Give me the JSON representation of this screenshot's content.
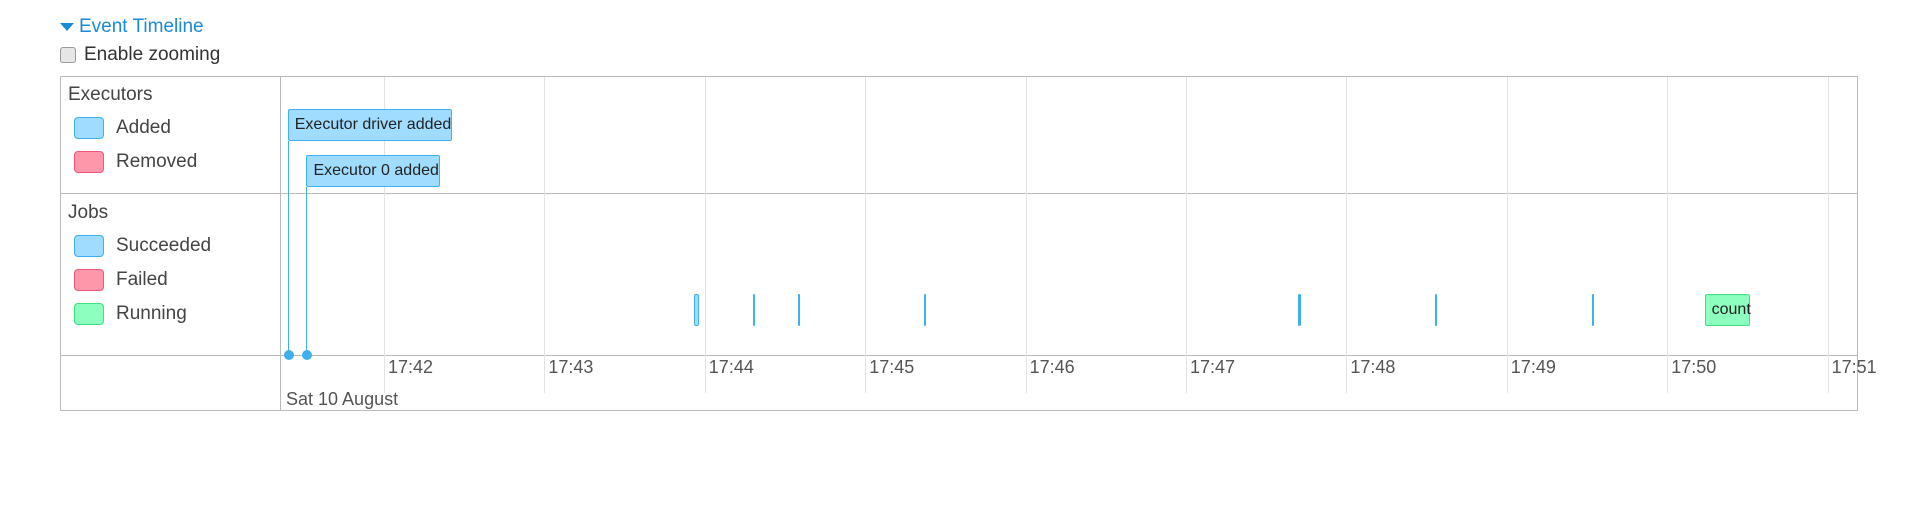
{
  "header": {
    "title": "Event Timeline",
    "expanded": true
  },
  "zoom_toggle": {
    "label": "Enable zooming",
    "checked": false
  },
  "colors": {
    "added": "#a0dcff",
    "removed": "#ff97ab",
    "succeeded": "#a0dcff",
    "failed": "#ff97ab",
    "running": "#8dffbf",
    "link": "#1a8ad6"
  },
  "groups": {
    "executors": {
      "label": "Executors",
      "legend": [
        {
          "label": "Added",
          "color": "#a0dcff",
          "border": "#3eb0ef"
        },
        {
          "label": "Removed",
          "color": "#ff97ab",
          "border": "#f0577a"
        }
      ]
    },
    "jobs": {
      "label": "Jobs",
      "legend": [
        {
          "label": "Succeeded",
          "color": "#a0dcff",
          "border": "#3eb0ef"
        },
        {
          "label": "Failed",
          "color": "#ff97ab",
          "border": "#f0577a"
        },
        {
          "label": "Running",
          "color": "#8dffbf",
          "border": "#3ee07f"
        }
      ]
    }
  },
  "executor_events": [
    {
      "label": "Executor driver added",
      "time": "17:41:24"
    },
    {
      "label": "Executor 0 added",
      "time": "17:41:31"
    }
  ],
  "jobs": [
    {
      "start": "17:43:56",
      "end": "17:43:58",
      "status": "succeeded",
      "label": ""
    },
    {
      "start": "17:44:18",
      "end": "17:44:18",
      "status": "succeeded",
      "label": ""
    },
    {
      "start": "17:44:35",
      "end": "17:44:35",
      "status": "succeeded",
      "label": ""
    },
    {
      "start": "17:45:22",
      "end": "17:45:22",
      "status": "succeeded",
      "label": ""
    },
    {
      "start": "17:47:42",
      "end": "17:47:43",
      "status": "succeeded",
      "label": ""
    },
    {
      "start": "17:48:33",
      "end": "17:48:33",
      "status": "succeeded",
      "label": ""
    },
    {
      "start": "17:49:32",
      "end": "17:49:32",
      "status": "succeeded",
      "label": ""
    },
    {
      "start": "17:50:14",
      "end": "17:50:31",
      "status": "running",
      "label": "count"
    }
  ],
  "axis": {
    "ticks": [
      "17:42",
      "17:43",
      "17:44",
      "17:45",
      "17:46",
      "17:47",
      "17:48",
      "17:49",
      "17:50",
      "17:51"
    ],
    "date_label": "Sat 10 August"
  }
}
